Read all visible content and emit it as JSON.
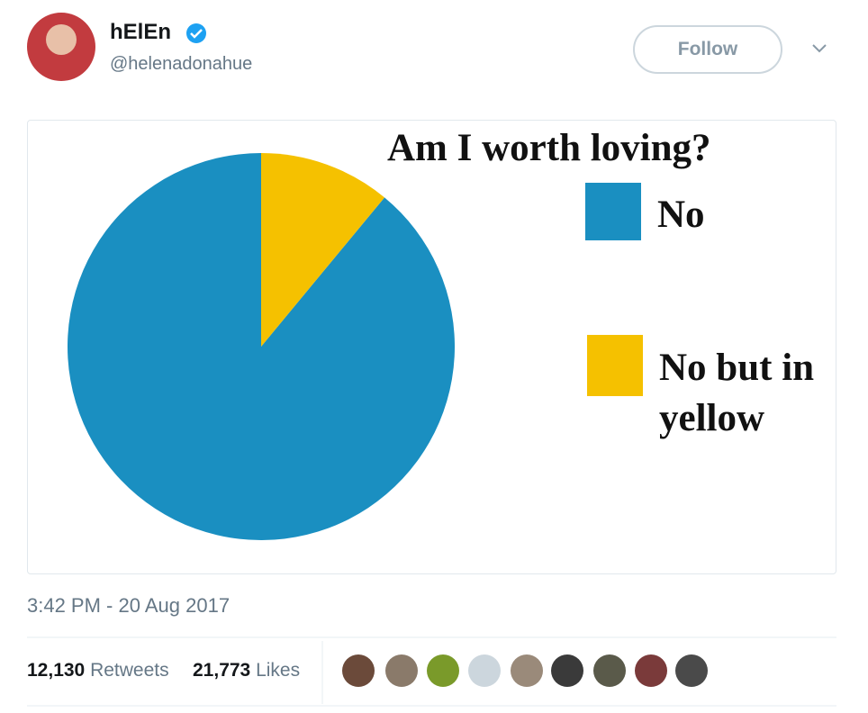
{
  "header": {
    "name": "hElEn",
    "handle": "@helenadonahue",
    "follow_button": "Follow"
  },
  "chart_data": {
    "type": "pie",
    "title": "Am I worth loving?",
    "categories": [
      "No",
      "No but in yellow"
    ],
    "values": [
      89,
      11
    ],
    "colors": [
      "#1a8fc1",
      "#f5c100"
    ]
  },
  "footer": {
    "timestamp": "3:42 PM - 20 Aug 2017",
    "retweets": {
      "count": "12,130",
      "label": "Retweets"
    },
    "likes": {
      "count": "21,773",
      "label": "Likes"
    }
  }
}
